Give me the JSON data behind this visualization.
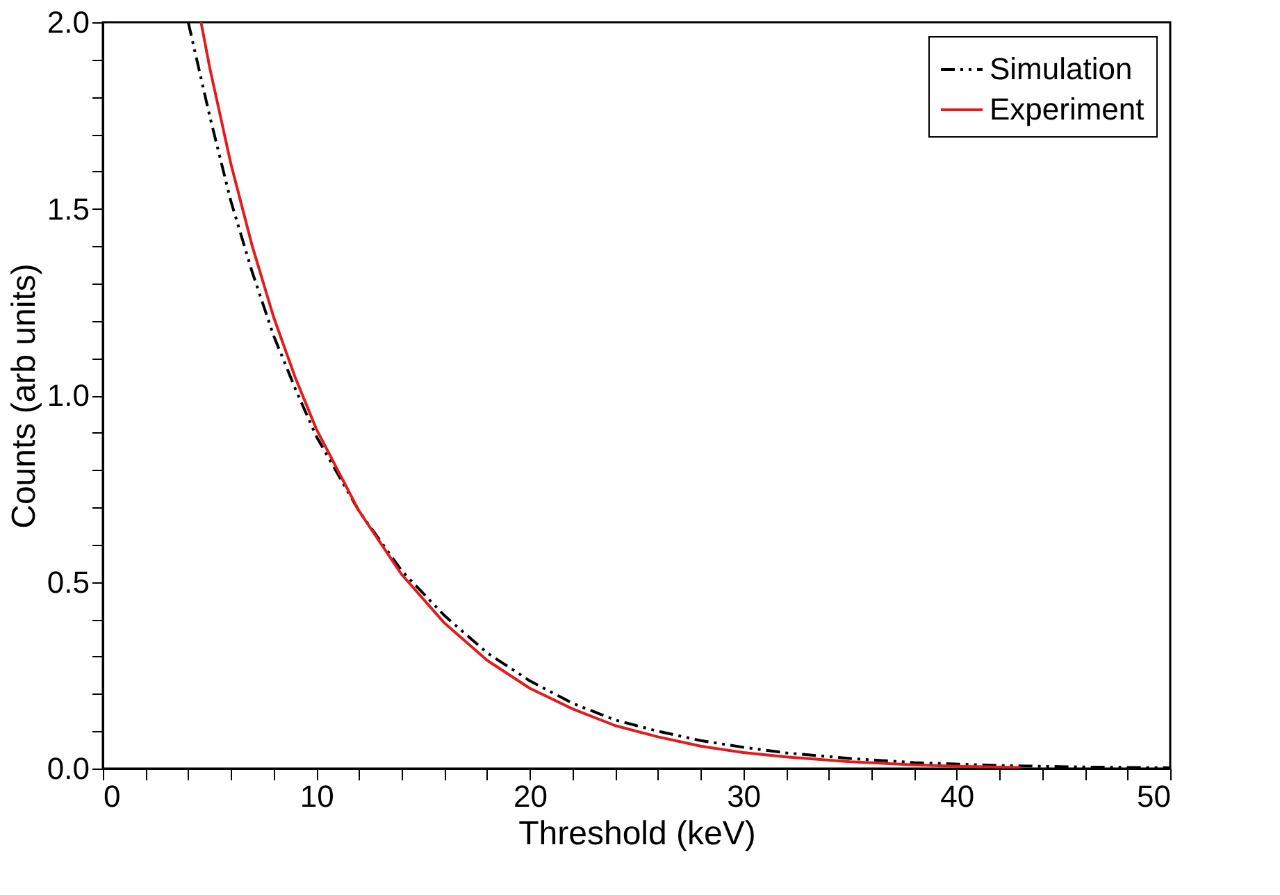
{
  "chart_data": {
    "type": "line",
    "xlabel": "Threshold (keV)",
    "ylabel": "Counts (arb units)",
    "xlim": [
      0,
      50
    ],
    "ylim": [
      0,
      2.0
    ],
    "xticks": [
      0,
      {
        "value": 2,
        "label": null
      },
      {
        "value": 4,
        "label": null
      },
      {
        "value": 6,
        "label": null
      },
      {
        "value": 8,
        "label": null
      },
      10,
      {
        "value": 12,
        "label": null
      },
      {
        "value": 14,
        "label": null
      },
      {
        "value": 16,
        "label": null
      },
      {
        "value": 18,
        "label": null
      },
      20,
      {
        "value": 22,
        "label": null
      },
      {
        "value": 24,
        "label": null
      },
      {
        "value": 26,
        "label": null
      },
      {
        "value": 28,
        "label": null
      },
      30,
      {
        "value": 32,
        "label": null
      },
      {
        "value": 34,
        "label": null
      },
      {
        "value": 36,
        "label": null
      },
      {
        "value": 38,
        "label": null
      },
      40,
      {
        "value": 42,
        "label": null
      },
      {
        "value": 44,
        "label": null
      },
      {
        "value": 46,
        "label": null
      },
      {
        "value": 48,
        "label": null
      },
      50
    ],
    "yticks": [
      {
        "value": 0,
        "label": "0.0"
      },
      {
        "value": 0.1,
        "label": null
      },
      {
        "value": 0.2,
        "label": null
      },
      {
        "value": 0.3,
        "label": null
      },
      {
        "value": 0.4,
        "label": null
      },
      0.5,
      {
        "value": 0.6,
        "label": null
      },
      {
        "value": 0.7,
        "label": null
      },
      {
        "value": 0.8,
        "label": null
      },
      {
        "value": 0.9,
        "label": null
      },
      {
        "value": 1.0,
        "label": "1.0"
      },
      {
        "value": 1.1,
        "label": null
      },
      {
        "value": 1.2,
        "label": null
      },
      {
        "value": 1.3,
        "label": null
      },
      {
        "value": 1.4,
        "label": null
      },
      1.5,
      {
        "value": 1.6,
        "label": null
      },
      {
        "value": 1.7,
        "label": null
      },
      {
        "value": 1.8,
        "label": null
      },
      {
        "value": 1.9,
        "label": null
      },
      {
        "value": 2.0,
        "label": "2.0"
      }
    ],
    "grid": false,
    "legend": "top right",
    "series": [
      {
        "name": "Simulation",
        "color": "#000000",
        "line_style": "dashed",
        "x": [
          4,
          5,
          6,
          7,
          8,
          9,
          10,
          12,
          14,
          16,
          18,
          20,
          22,
          24,
          26,
          28,
          30,
          32,
          35,
          38,
          42,
          46,
          50
        ],
        "values": [
          2.0,
          1.75,
          1.52,
          1.33,
          1.16,
          1.02,
          0.89,
          0.69,
          0.53,
          0.41,
          0.31,
          0.235,
          0.175,
          0.13,
          0.1,
          0.075,
          0.057,
          0.042,
          0.027,
          0.016,
          0.008,
          0.004,
          0.002
        ]
      },
      {
        "name": "Experiment",
        "color": "#e41a1c",
        "line_style": "solid",
        "x": [
          4.6,
          5,
          6,
          7,
          8,
          9,
          10,
          12,
          14,
          16,
          18,
          20,
          22,
          24,
          26,
          28,
          30,
          32,
          35,
          38,
          40,
          43
        ],
        "values": [
          2.0,
          1.88,
          1.62,
          1.4,
          1.21,
          1.05,
          0.91,
          0.69,
          0.52,
          0.39,
          0.29,
          0.215,
          0.16,
          0.115,
          0.085,
          0.06,
          0.043,
          0.031,
          0.018,
          0.01,
          0.006,
          0.003
        ]
      }
    ]
  }
}
